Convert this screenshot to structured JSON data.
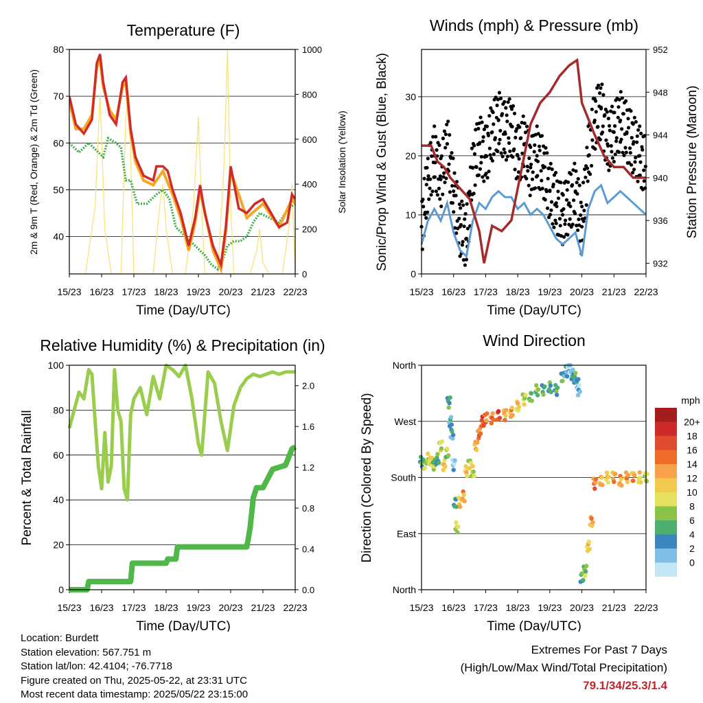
{
  "panels": {
    "temperature": {
      "title": "Temperature (F)",
      "ylabel_left": "2m & 9m T (Red, Orange) & 2m Td (Green)",
      "ylabel_right": "Solar Insolation (Yellow)",
      "xlabel": "Time (Day/UTC)"
    },
    "winds": {
      "title": "Winds (mph) & Pressure (mb)",
      "ylabel_left": "Sonic/Prop Wind & Gust (Blue, Black)",
      "ylabel_right": "Station Pressure (Maroon)",
      "xlabel": "Time (Day/UTC)"
    },
    "humidity": {
      "title": "Relative Humidity (%) & Precipitation (in)",
      "ylabel_left": "Percent & Total Rainfall",
      "xlabel": "Time (Day/UTC)"
    },
    "direction": {
      "title": "Wind Direction",
      "ylabel_left": "Direction (Colored By Speed)",
      "xlabel": "Time (Day/UTC)",
      "legend_title": "mph"
    }
  },
  "chart_data": [
    {
      "id": "temperature",
      "type": "line",
      "title": "Temperature (F)",
      "xlabel": "Time (Day/UTC)",
      "ylabel": "2m & 9m T (Red, Orange) & 2m Td (Green)",
      "y2label": "Solar Insolation (Yellow)",
      "x_ticks": [
        "15/23",
        "16/23",
        "17/23",
        "18/23",
        "19/23",
        "20/23",
        "21/23",
        "22/23"
      ],
      "xlim": [
        0,
        7
      ],
      "ylim": [
        32,
        80
      ],
      "y_ticks": [
        40,
        50,
        60,
        70,
        80
      ],
      "y2lim": [
        0,
        1000
      ],
      "y2_ticks": [
        0,
        200,
        400,
        600,
        800,
        1000
      ],
      "grid": "horizontal",
      "series": [
        {
          "color": "#d12b27",
          "x": [
            0,
            0.2,
            0.45,
            0.7,
            0.85,
            0.95,
            1.05,
            1.25,
            1.45,
            1.65,
            1.75,
            1.9,
            2.05,
            2.3,
            2.6,
            2.7,
            2.9,
            3.05,
            3.2,
            3.45,
            3.7,
            3.9,
            4.05,
            4.2,
            4.45,
            4.7,
            4.85,
            5.0,
            5.25,
            5.5,
            5.75,
            6.0,
            6.25,
            6.5,
            6.75,
            6.9,
            7.0
          ],
          "y": [
            70,
            64,
            62,
            65,
            77,
            79,
            73,
            66,
            64,
            73,
            74,
            63,
            57,
            53,
            52,
            55,
            55,
            54,
            50,
            45,
            38,
            44,
            51,
            45,
            38,
            34,
            42,
            55,
            46,
            45,
            47,
            48,
            45,
            42,
            43,
            49,
            48
          ]
        },
        {
          "color": "#f5a623",
          "x": [
            0,
            0.2,
            0.45,
            0.7,
            0.85,
            0.95,
            1.05,
            1.25,
            1.45,
            1.65,
            1.75,
            1.9,
            2.05,
            2.3,
            2.6,
            2.9,
            3.2,
            3.45,
            3.7,
            3.9,
            4.05,
            4.45,
            4.7,
            4.85,
            5.0,
            5.5,
            6.0,
            6.5,
            6.9,
            7.0
          ],
          "y": [
            69,
            63,
            63,
            66,
            76,
            78,
            72,
            67,
            65,
            72,
            73,
            62,
            56,
            52,
            51,
            54,
            49,
            44,
            37,
            43,
            50,
            37,
            33,
            41,
            54,
            44,
            47,
            42,
            48,
            47
          ]
        },
        {
          "color": "#3fae49",
          "x": [
            0,
            0.3,
            0.6,
            0.9,
            1.05,
            1.2,
            1.45,
            1.6,
            1.75,
            1.9,
            2.1,
            2.4,
            2.7,
            2.9,
            3.1,
            3.3,
            3.6,
            3.9,
            4.2,
            4.4,
            4.6,
            4.75,
            4.9,
            5.1,
            5.3,
            5.5,
            5.7,
            5.9,
            6.2,
            6.5,
            6.8,
            7.0
          ],
          "y": [
            60,
            58,
            60,
            58,
            57,
            61,
            60,
            59,
            52,
            52,
            47,
            47,
            49,
            50,
            48,
            42,
            40,
            38,
            36,
            34,
            33,
            35,
            38,
            39,
            39,
            40,
            43,
            45,
            44,
            43,
            46,
            47
          ]
        },
        {
          "color": "#f7e27a",
          "axis": "y2",
          "x": [
            0,
            0.5,
            0.8,
            0.95,
            1.1,
            1.3,
            1.6,
            1.75,
            1.85,
            2.0,
            2.3,
            2.6,
            2.8,
            2.9,
            3.0,
            3.2,
            3.6,
            3.85,
            4.0,
            4.1,
            4.2,
            4.6,
            4.8,
            4.9,
            5.0,
            5.1,
            5.3,
            5.6,
            5.8,
            5.9,
            6.0,
            6.2,
            6.6,
            6.8,
            6.9,
            7.0
          ],
          "y": [
            0,
            0,
            300,
            800,
            200,
            0,
            0,
            700,
            800,
            0,
            0,
            0,
            300,
            400,
            200,
            0,
            0,
            300,
            700,
            300,
            0,
            0,
            500,
            1000,
            300,
            0,
            0,
            0,
            100,
            200,
            50,
            0,
            0,
            200,
            400,
            0
          ]
        }
      ]
    },
    {
      "id": "winds",
      "type": "scatter",
      "title": "Winds (mph) & Pressure (mb)",
      "xlabel": "Time (Day/UTC)",
      "ylabel": "Sonic/Prop Wind & Gust (Blue, Black)",
      "y2label": "Station Pressure (Maroon)",
      "x_ticks": [
        "15/23",
        "16/23",
        "17/23",
        "18/23",
        "19/23",
        "20/23",
        "21/23",
        "22/23"
      ],
      "xlim": [
        0,
        7
      ],
      "ylim": [
        0,
        38
      ],
      "y_ticks": [
        0,
        10,
        20,
        30
      ],
      "y2lim": [
        931,
        952
      ],
      "y2_ticks": [
        932,
        936,
        940,
        944,
        948,
        952
      ],
      "grid": "horizontal",
      "series": [
        {
          "color": "#000000",
          "x": [
            0,
            0.2,
            0.4,
            0.6,
            0.8,
            1.0,
            1.2,
            1.4,
            1.6,
            1.8,
            2.0,
            2.2,
            2.4,
            2.6,
            2.8,
            3.0,
            3.2,
            3.4,
            3.6,
            3.8,
            4.0,
            4.2,
            4.4,
            4.6,
            4.8,
            5.0,
            5.2,
            5.4,
            5.6,
            5.8,
            6.0,
            6.2,
            6.4,
            6.6,
            6.8,
            7.0
          ],
          "y": [
            8,
            16,
            20,
            16,
            22,
            14,
            8,
            6,
            18,
            22,
            20,
            24,
            26,
            24,
            25,
            20,
            22,
            18,
            20,
            18,
            14,
            12,
            10,
            12,
            14,
            8,
            20,
            26,
            28,
            22,
            24,
            26,
            24,
            22,
            20,
            18
          ]
        },
        {
          "color": "#5b9bd5",
          "x": [
            0,
            0.2,
            0.4,
            0.6,
            0.8,
            1.0,
            1.2,
            1.4,
            1.6,
            1.8,
            2.0,
            2.2,
            2.4,
            2.6,
            2.8,
            3.0,
            3.2,
            3.4,
            3.6,
            3.8,
            4.0,
            4.2,
            4.4,
            4.6,
            4.8,
            5.0,
            5.2,
            5.4,
            5.6,
            5.8,
            6.0,
            6.2,
            6.4,
            6.6,
            6.8,
            7.0
          ],
          "y": [
            5,
            9,
            11,
            9,
            12,
            7,
            4,
            3,
            9,
            12,
            11,
            13,
            14,
            13,
            13,
            11,
            12,
            10,
            11,
            10,
            8,
            6,
            5,
            6,
            7,
            3,
            11,
            14,
            15,
            12,
            13,
            14,
            13,
            12,
            11,
            10
          ]
        },
        {
          "color": "#a52a2a",
          "axis": "y2",
          "x": [
            0,
            0.3,
            0.5,
            0.7,
            0.9,
            1.2,
            1.5,
            1.8,
            1.95,
            2.2,
            2.5,
            2.8,
            3.1,
            3.4,
            3.7,
            4.0,
            4.3,
            4.6,
            4.85,
            5.0,
            5.4,
            5.7,
            6.0,
            6.3,
            6.6,
            6.9,
            7.0
          ],
          "y": [
            943,
            943,
            941.5,
            941,
            940,
            939,
            938,
            935,
            932,
            935.5,
            935,
            936,
            940.5,
            945,
            947,
            948,
            949.5,
            950.5,
            951,
            947,
            944,
            942,
            941,
            941,
            940,
            940,
            940
          ]
        }
      ]
    },
    {
      "id": "humidity",
      "type": "line",
      "title": "Relative Humidity (%) & Precipitation (in)",
      "xlabel": "Time (Day/UTC)",
      "ylabel": "Percent & Total Rainfall",
      "x_ticks": [
        "15/23",
        "16/23",
        "17/23",
        "18/23",
        "19/23",
        "20/23",
        "21/23",
        "22/23"
      ],
      "xlim": [
        0,
        7
      ],
      "ylim": [
        0,
        100
      ],
      "y_ticks": [
        0,
        20,
        40,
        60,
        80,
        100
      ],
      "y2lim": [
        0,
        2.2
      ],
      "y2_ticks": [
        "0.0",
        "0.4",
        "0.8",
        "1.2",
        "1.6",
        "2.0"
      ],
      "grid": "horizontal",
      "series": [
        {
          "color": "#9acd4e",
          "x": [
            0,
            0.15,
            0.3,
            0.45,
            0.6,
            0.7,
            0.8,
            0.9,
            1.0,
            1.1,
            1.2,
            1.3,
            1.4,
            1.5,
            1.6,
            1.7,
            1.8,
            1.9,
            2.0,
            2.2,
            2.4,
            2.6,
            2.8,
            3.0,
            3.2,
            3.4,
            3.6,
            3.8,
            4.0,
            4.1,
            4.3,
            4.5,
            4.7,
            4.9,
            5.1,
            5.3,
            5.5,
            5.7,
            5.9,
            6.1,
            6.3,
            6.5,
            6.7,
            7.0
          ],
          "y": [
            72,
            80,
            88,
            85,
            98,
            96,
            75,
            55,
            45,
            70,
            48,
            55,
            98,
            80,
            75,
            45,
            40,
            78,
            85,
            90,
            78,
            95,
            85,
            100,
            98,
            95,
            100,
            85,
            65,
            60,
            97,
            92,
            75,
            62,
            82,
            90,
            94,
            96,
            95,
            96,
            97,
            96,
            97,
            97
          ]
        },
        {
          "color": "#4fb848",
          "axis": "y2",
          "x": [
            0,
            0.55,
            0.6,
            1.9,
            1.95,
            2.5,
            3.0,
            3.05,
            3.3,
            3.35,
            4.0,
            5.5,
            5.6,
            5.7,
            5.8,
            6.0,
            6.3,
            6.7,
            6.9,
            7.0
          ],
          "y": [
            0,
            0,
            0.08,
            0.08,
            0.26,
            0.26,
            0.26,
            0.3,
            0.3,
            0.42,
            0.42,
            0.42,
            0.6,
            0.9,
            1.0,
            1.0,
            1.18,
            1.22,
            1.38,
            1.4
          ]
        }
      ]
    },
    {
      "id": "direction",
      "type": "scatter",
      "title": "Wind Direction",
      "xlabel": "Time (Day/UTC)",
      "ylabel": "Direction (Colored By Speed)",
      "x_ticks": [
        "15/23",
        "16/23",
        "17/23",
        "18/23",
        "19/23",
        "20/23",
        "21/23",
        "22/23"
      ],
      "xlim": [
        0,
        7
      ],
      "y_ticks": [
        "North",
        "East",
        "South",
        "West",
        "North"
      ],
      "grid": "horizontal",
      "legend_title": "mph",
      "legend_labels": [
        "20+",
        "18",
        "16",
        "14",
        "12",
        "10",
        "8",
        "6",
        "4",
        "2",
        "0"
      ],
      "legend_colors": [
        "#a51c1c",
        "#cc2b27",
        "#e04c2e",
        "#f06a2a",
        "#f8a14b",
        "#f2c94c",
        "#e4e15e",
        "#8bc34a",
        "#4caf6e",
        "#3c86c0",
        "#7fbfe6",
        "#c3e6f7"
      ],
      "points": {
        "x": [
          0,
          0.1,
          0.2,
          0.3,
          0.4,
          0.5,
          0.6,
          0.7,
          0.8,
          0.85,
          0.9,
          0.95,
          1.0,
          1.05,
          1.1,
          1.2,
          1.3,
          1.4,
          1.5,
          1.6,
          1.7,
          1.8,
          1.9,
          2.0,
          2.2,
          2.4,
          2.6,
          2.8,
          3.0,
          3.2,
          3.4,
          3.6,
          3.8,
          4.0,
          4.2,
          4.4,
          4.5,
          4.6,
          4.7,
          4.8,
          4.85,
          4.9,
          5.0,
          5.1,
          5.2,
          5.3,
          5.4,
          5.6,
          5.8,
          6.0,
          6.2,
          6.4,
          6.6,
          6.8,
          7.0
        ],
        "y_deg": [
          205,
          200,
          210,
          205,
          200,
          210,
          230,
          200,
          220,
          300,
          270,
          250,
          200,
          140,
          100,
          140,
          150,
          190,
          200,
          190,
          230,
          250,
          270,
          275,
          275,
          280,
          280,
          285,
          295,
          305,
          310,
          320,
          320,
          325,
          320,
          340,
          350,
          355,
          345,
          340,
          330,
          320,
          20,
          30,
          70,
          110,
          170,
          175,
          180,
          180,
          175,
          180,
          180,
          180,
          180
        ],
        "speed": [
          6,
          8,
          10,
          12,
          8,
          6,
          10,
          12,
          8,
          6,
          4,
          4,
          2,
          6,
          10,
          12,
          14,
          12,
          10,
          10,
          14,
          16,
          18,
          16,
          16,
          18,
          14,
          14,
          12,
          10,
          8,
          8,
          6,
          6,
          6,
          6,
          4,
          2,
          4,
          6,
          4,
          2,
          6,
          8,
          12,
          14,
          16,
          14,
          12,
          14,
          14,
          14,
          14,
          12,
          10
        ]
      }
    }
  ],
  "info": {
    "location": "Location: Burdett",
    "elevation": "Station elevation: 567.751 m",
    "latlon": "Station lat/lon: 42.4104; -76.7718",
    "created": "Figure created on Thu, 2025-05-22, at 23:31 UTC",
    "recent": "Most recent data timestamp: 2025/05/22 23:15:00"
  },
  "extremes": {
    "line1": "Extremes For Past 7 Days",
    "line2": "(High/Low/Max Wind/Total Precipitation)",
    "values": "79.1/34/25.3/1.4"
  }
}
